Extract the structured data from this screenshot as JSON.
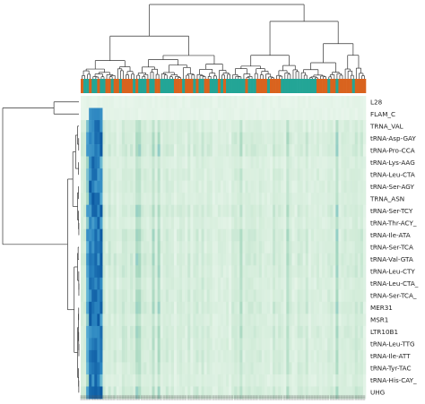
{
  "chart_data": {
    "type": "heatmap",
    "title": "",
    "xlabel": "",
    "ylabel": "",
    "rows": [
      "L28",
      "FLAM_C",
      "TRNA_VAL",
      "tRNA-Asp-GAY",
      "tRNA-Pro-CCA",
      "tRNA-Lys-AAG",
      "tRNA-Leu-CTA",
      "tRNA-Ser-AGY",
      "TRNA_ASN",
      "tRNA-Ser-TCY",
      "tRNA-Thr-ACY_",
      "tRNA-Ile-ATA",
      "tRNA-Ser-TCA",
      "tRNA-Val-GTA",
      "tRNA-Leu-CTY",
      "tRNA-Leu-CTA_",
      "tRNA-Ser-TCA_",
      "MER31",
      "MSR1",
      "LTR10B1",
      "tRNA-Leu-TTG",
      "tRNA-Ile-ATT",
      "tRNA-Tyr-TAC",
      "tRNA-His-CAY_",
      "UHG"
    ],
    "n_columns": 104,
    "column_annotation_colors": [
      "#d9631e",
      "#23a596"
    ],
    "colorscale": [
      "#eef8f0",
      "#d2ecd9",
      "#a8d8c0",
      "#5fb3d6",
      "#2b85c0",
      "#0d5ba3"
    ],
    "value_range": [
      0,
      1
    ],
    "row_dendrogram": true,
    "column_dendrogram": true,
    "grid": false,
    "legend": "none"
  }
}
